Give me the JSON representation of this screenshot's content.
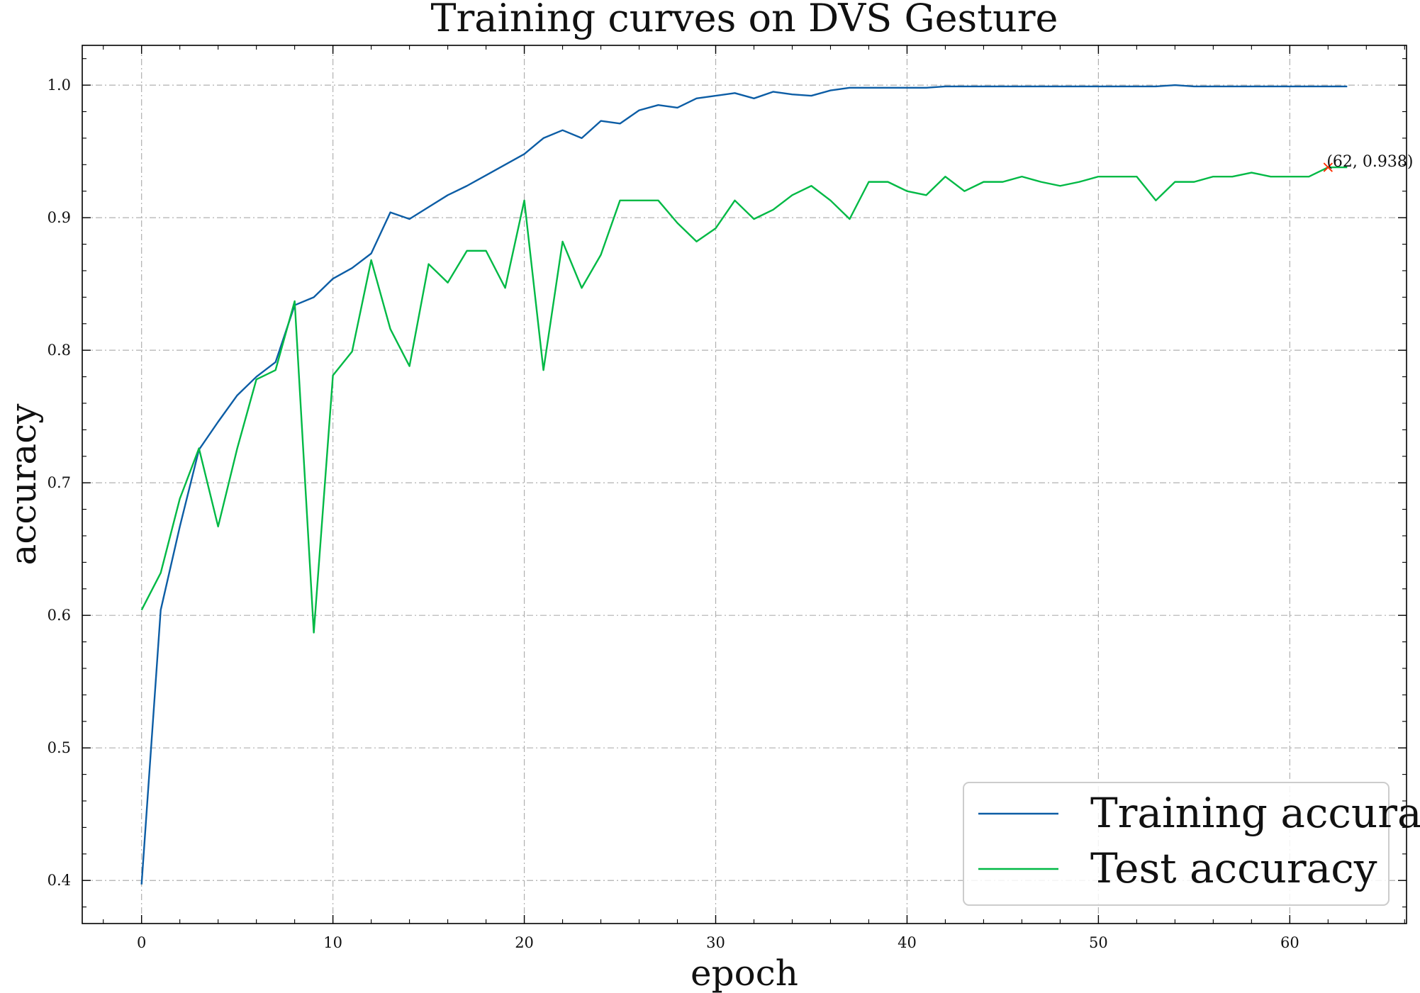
{
  "chart_data": {
    "type": "line",
    "title": "Training curves on DVS Gesture",
    "xlabel": "epoch",
    "ylabel": "accuracy",
    "xlim": [
      -3.1,
      66.1
    ],
    "ylim": [
      0.3675,
      1.03
    ],
    "xticks": [
      0,
      10,
      20,
      30,
      40,
      50,
      60
    ],
    "yticks": [
      0.4,
      0.5,
      0.6,
      0.7,
      0.8,
      0.9,
      1.0
    ],
    "ytick_labels": [
      "0.4",
      "0.5",
      "0.6",
      "0.7",
      "0.8",
      "0.9",
      "1.0"
    ],
    "grid": true,
    "legend_position": "lower-right",
    "x": [
      0,
      1,
      2,
      3,
      4,
      5,
      6,
      7,
      8,
      9,
      10,
      11,
      12,
      13,
      14,
      15,
      16,
      17,
      18,
      19,
      20,
      21,
      22,
      23,
      24,
      25,
      26,
      27,
      28,
      29,
      30,
      31,
      32,
      33,
      34,
      35,
      36,
      37,
      38,
      39,
      40,
      41,
      42,
      43,
      44,
      45,
      46,
      47,
      48,
      49,
      50,
      51,
      52,
      53,
      54,
      55,
      56,
      57,
      58,
      59,
      60,
      61,
      62,
      63
    ],
    "series": [
      {
        "name": "Training accuracy",
        "color": "#0c5da5",
        "values": [
          0.397,
          0.604,
          0.667,
          0.725,
          0.746,
          0.766,
          0.78,
          0.791,
          0.834,
          0.84,
          0.854,
          0.862,
          0.873,
          0.904,
          0.899,
          0.908,
          0.917,
          0.924,
          0.932,
          0.94,
          0.948,
          0.96,
          0.966,
          0.96,
          0.973,
          0.971,
          0.981,
          0.985,
          0.983,
          0.99,
          0.992,
          0.994,
          0.99,
          0.995,
          0.993,
          0.992,
          0.996,
          0.998,
          0.998,
          0.998,
          0.998,
          0.998,
          0.999,
          0.999,
          0.999,
          0.999,
          0.999,
          0.999,
          0.999,
          0.999,
          0.999,
          0.999,
          0.999,
          0.999,
          1.0,
          0.999,
          0.999,
          0.999,
          0.999,
          0.999,
          0.999,
          0.999,
          0.999,
          0.999
        ]
      },
      {
        "name": "Test accuracy",
        "color": "#00b945",
        "values": [
          0.604,
          0.632,
          0.688,
          0.726,
          0.667,
          0.726,
          0.778,
          0.785,
          0.837,
          0.587,
          0.781,
          0.799,
          0.868,
          0.816,
          0.788,
          0.865,
          0.851,
          0.875,
          0.875,
          0.847,
          0.913,
          0.785,
          0.882,
          0.847,
          0.872,
          0.913,
          0.913,
          0.913,
          0.896,
          0.882,
          0.892,
          0.913,
          0.899,
          0.906,
          0.917,
          0.924,
          0.913,
          0.899,
          0.927,
          0.927,
          0.92,
          0.917,
          0.931,
          0.92,
          0.927,
          0.927,
          0.931,
          0.927,
          0.924,
          0.927,
          0.931,
          0.931,
          0.931,
          0.913,
          0.927,
          0.927,
          0.931,
          0.931,
          0.934,
          0.931,
          0.931,
          0.931,
          0.938,
          0.938
        ]
      }
    ],
    "annotation": {
      "text": "(62, 0.938)",
      "x": 62,
      "y": 0.938,
      "marker": "x",
      "marker_color": "#ff2c00"
    }
  }
}
